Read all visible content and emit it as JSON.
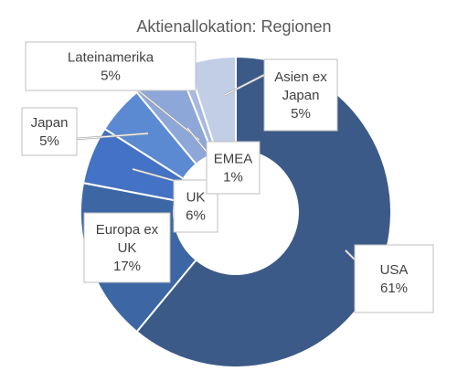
{
  "chart_data": {
    "type": "pie",
    "title": "Aktienallokation: Regionen",
    "categories": [
      "USA",
      "Europa ex UK",
      "UK",
      "Japan",
      "Lateinamerika",
      "EMEA",
      "Asien ex Japan"
    ],
    "values": [
      61,
      17,
      6,
      5,
      5,
      1,
      5
    ],
    "labels": [
      {
        "lines": [
          "USA",
          "61%"
        ]
      },
      {
        "lines": [
          "Europa ex",
          "UK",
          "17%"
        ]
      },
      {
        "lines": [
          "UK",
          "6%"
        ]
      },
      {
        "lines": [
          "Japan",
          "5%"
        ]
      },
      {
        "lines": [
          "Lateinamerika",
          "5%"
        ]
      },
      {
        "lines": [
          "EMEA",
          "1%"
        ]
      },
      {
        "lines": [
          "Asien ex",
          "Japan",
          "5%"
        ]
      }
    ],
    "colors": [
      "#3c5a87",
      "#3c67a4",
      "#4472c4",
      "#5b8ad3",
      "#8da7d8",
      "#a8b9de",
      "#c2cee6"
    ],
    "donut": true,
    "legend": "none"
  }
}
